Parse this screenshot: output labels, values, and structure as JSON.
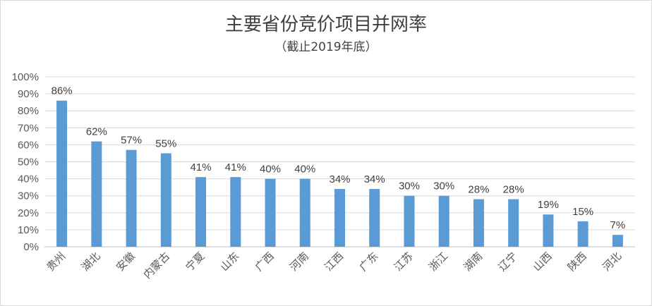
{
  "chart_data": {
    "type": "bar",
    "title": "主要省份竞价项目并网率",
    "subtitle": "（截止2019年底）",
    "categories": [
      "贵州",
      "湖北",
      "安徽",
      "内蒙古",
      "宁夏",
      "山东",
      "广西",
      "河南",
      "江西",
      "广东",
      "江苏",
      "浙江",
      "湖南",
      "辽宁",
      "山西",
      "陕西",
      "河北"
    ],
    "values": [
      86,
      62,
      57,
      55,
      41,
      41,
      40,
      40,
      34,
      34,
      30,
      30,
      28,
      28,
      19,
      15,
      7
    ],
    "data_labels": [
      "86%",
      "62%",
      "57%",
      "55%",
      "41%",
      "41%",
      "40%",
      "40%",
      "34%",
      "34%",
      "30%",
      "30%",
      "28%",
      "28%",
      "19%",
      "15%",
      "7%"
    ],
    "yticks": [
      "0%",
      "10%",
      "20%",
      "30%",
      "40%",
      "50%",
      "60%",
      "70%",
      "80%",
      "90%",
      "100%"
    ],
    "ylim": [
      0,
      100
    ],
    "xlabel": "",
    "ylabel": "",
    "grid": true,
    "bar_color": "#5b9bd5",
    "grid_color": "#d9d9d9"
  }
}
